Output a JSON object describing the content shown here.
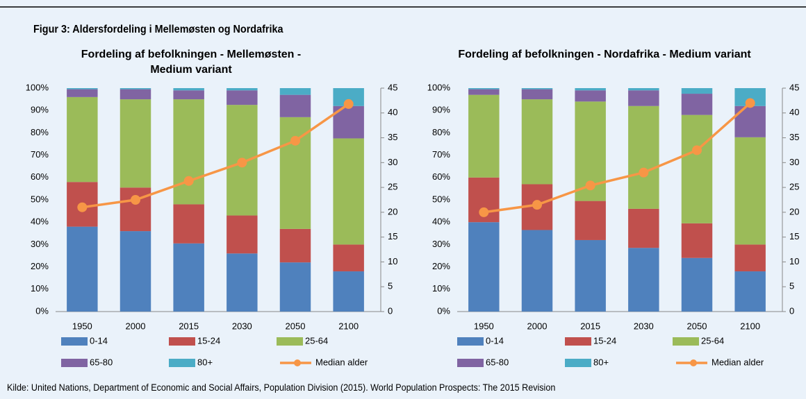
{
  "figure_title": "Figur 3: Aldersfordeling i Mellemøsten og Nordafrika",
  "source": "Kilde: United Nations, Department of Economic and Social Affairs, Population Division (2015). World Population Prospects: The 2015 Revision",
  "chart_data": [
    {
      "type": "stacked_bar",
      "title": "Fordeling af befolkningen - Mellemøsten - Medium variant",
      "categories": [
        "1950",
        "2000",
        "2015",
        "2030",
        "2050",
        "2100"
      ],
      "series": [
        {
          "name": "0-14",
          "color": "#4f81bd",
          "values": [
            38,
            36,
            30.5,
            26,
            22,
            18
          ]
        },
        {
          "name": "15-24",
          "color": "#c0504d",
          "values": [
            20,
            19.5,
            17.5,
            17,
            15,
            12
          ]
        },
        {
          "name": "25-64",
          "color": "#9bbb59",
          "values": [
            38,
            39.5,
            47,
            49.5,
            50,
            47.5
          ]
        },
        {
          "name": "65-80",
          "color": "#8064a2",
          "values": [
            3.5,
            4.5,
            4,
            6.5,
            10,
            14.5
          ]
        },
        {
          "name": "80+",
          "color": "#4bacc6",
          "values": [
            0.5,
            0.5,
            1,
            1,
            3,
            8
          ]
        },
        {
          "name": "Median alder",
          "color": "#f79646",
          "type": "line",
          "axis": "y2",
          "values": [
            21,
            22.5,
            26.3,
            30,
            34.4,
            41.8
          ]
        }
      ],
      "stacked": true,
      "ylim": [
        0,
        100
      ],
      "yticks": [
        {
          "value": 0,
          "label": "0%"
        },
        {
          "value": 10,
          "label": "10%"
        },
        {
          "value": 20,
          "label": "20%"
        },
        {
          "value": 30,
          "label": "30%"
        },
        {
          "value": 40,
          "label": "40%"
        },
        {
          "value": 50,
          "label": "50%"
        },
        {
          "value": 60,
          "label": "60%"
        },
        {
          "value": 70,
          "label": "70%"
        },
        {
          "value": 80,
          "label": "80%"
        },
        {
          "value": 90,
          "label": "90%"
        },
        {
          "value": 100,
          "label": "100%"
        }
      ],
      "y2lim": [
        0,
        45
      ],
      "y2ticks": [
        0,
        5,
        10,
        15,
        20,
        25,
        30,
        35,
        40,
        45
      ],
      "legend": "bottom"
    },
    {
      "type": "stacked_bar",
      "title": "Fordeling af befolkningen - Nordafrika - Medium variant",
      "categories": [
        "1950",
        "2000",
        "2015",
        "2030",
        "2050",
        "2100"
      ],
      "series": [
        {
          "name": "0-14",
          "color": "#4f81bd",
          "values": [
            40,
            36.5,
            32,
            28.5,
            24,
            18
          ]
        },
        {
          "name": "15-24",
          "color": "#c0504d",
          "values": [
            20,
            20.5,
            17.5,
            17.5,
            15.5,
            12
          ]
        },
        {
          "name": "25-64",
          "color": "#9bbb59",
          "values": [
            37,
            38,
            44.5,
            46,
            48.5,
            48
          ]
        },
        {
          "name": "65-80",
          "color": "#8064a2",
          "values": [
            2.5,
            4.5,
            5,
            7,
            9.5,
            14
          ]
        },
        {
          "name": "80+",
          "color": "#4bacc6",
          "values": [
            0.5,
            0.5,
            1,
            1,
            2.5,
            8
          ]
        },
        {
          "name": "Median alder",
          "color": "#f79646",
          "type": "line",
          "axis": "y2",
          "values": [
            20,
            21.5,
            25.4,
            28,
            32.5,
            42
          ]
        }
      ],
      "stacked": true,
      "ylim": [
        0,
        100
      ],
      "yticks": [
        {
          "value": 0,
          "label": "0%"
        },
        {
          "value": 10,
          "label": "10%"
        },
        {
          "value": 20,
          "label": "20%"
        },
        {
          "value": 30,
          "label": "30%"
        },
        {
          "value": 40,
          "label": "40%"
        },
        {
          "value": 50,
          "label": "50%"
        },
        {
          "value": 60,
          "label": "60%"
        },
        {
          "value": 70,
          "label": "70%"
        },
        {
          "value": 80,
          "label": "80%"
        },
        {
          "value": 90,
          "label": "90%"
        },
        {
          "value": 100,
          "label": "100%"
        }
      ],
      "y2lim": [
        0,
        45
      ],
      "y2ticks": [
        0,
        5,
        10,
        15,
        20,
        25,
        30,
        35,
        40,
        45
      ],
      "legend": "bottom"
    }
  ]
}
